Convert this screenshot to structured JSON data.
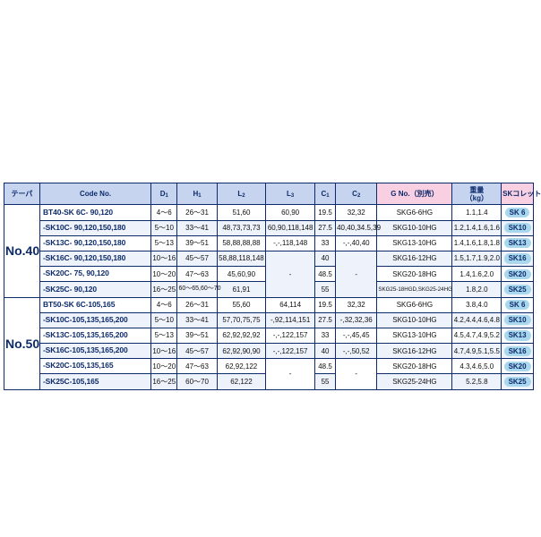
{
  "colors": {
    "border": "#0d2b6b",
    "header_bg": "#c7d4ef",
    "header_pink_bg": "#f9cfe2",
    "stripe_bg": "#eef2fa",
    "chip_bg": "#a9d8ee",
    "text_body": "#111111"
  },
  "headers": {
    "taper": "テーパ",
    "code": "Code No.",
    "d1": "D",
    "d1_sub": "1",
    "h1": "H",
    "h1_sub": "1",
    "l2": "L",
    "l2_sub": "2",
    "l3": "L",
    "l3_sub": "3",
    "c1": "C",
    "c1_sub": "1",
    "c2": "C",
    "c2_sub": "2",
    "g": "G No.（別売）",
    "weight_a": "重量",
    "weight_b": "（kg）",
    "sk": "SKコレット"
  },
  "group40": {
    "taper_label": "No.40",
    "r1": {
      "code": "BT40-SK  6C-  90,120",
      "d1": "4～6",
      "h1": "26～31",
      "l2": "51,60",
      "l3": "60,90",
      "c1": "19.5",
      "c2": "32,32",
      "g": "SKG6-6HG",
      "wt": "1.1,1.4",
      "sk": "SK 6"
    },
    "r2": {
      "code": "-SK10C-  90,120,150,180",
      "d1": "5～10",
      "h1": "33～41",
      "l2": "48,73,73,73",
      "l3": "60,90,118,148",
      "c1": "27.5",
      "c2": "40,40,34.5,39",
      "g": "SKG10-10HG",
      "wt": "1.2,1.4,1.6,1.6",
      "sk": "SK10"
    },
    "r3": {
      "code": "-SK13C-  90,120,150,180",
      "d1": "5～13",
      "h1": "39～51",
      "l2": "58,88,88,88",
      "l3": "-,-,118,148",
      "c1": "33",
      "c2": "-,-,40,40",
      "g": "SKG13-10HG",
      "wt": "1.4,1.6,1.8,1.8",
      "sk": "SK13"
    },
    "r4": {
      "code": "-SK16C-  90,120,150,180",
      "d1": "10～16",
      "h1": "45～57",
      "l2": "58,88,118,148",
      "l3_span": true,
      "c1": "40",
      "c2_span": true,
      "g": "SKG16-12HG",
      "wt": "1.5,1.7,1.9,2.0",
      "sk": "SK16"
    },
    "r5": {
      "code": "-SK20C-  75,  90,120",
      "d1": "10～20",
      "h1": "47～63",
      "l2": "45,60,90",
      "c1": "48.5",
      "g": "SKG20-18HG",
      "wt": "1.4,1.6,2.0",
      "sk": "SK20"
    },
    "r6": {
      "code": "-SK25C-  90,120",
      "d1": "16～25",
      "h1": "60～65,60～70",
      "l2": "61,91",
      "c1": "55",
      "g": "SKG25-18HGD,SKG25-24HG",
      "wt": "1.8,2.0",
      "sk": "SK25"
    }
  },
  "group50": {
    "taper_label": "No.50",
    "r1": {
      "code": "BT50-SK  6C-105,165",
      "d1": "4～6",
      "h1": "26～31",
      "l2": "55,60",
      "l3": "64,114",
      "c1": "19.5",
      "c2": "32,32",
      "g": "SKG6-6HG",
      "wt": "3.8,4.0",
      "sk": "SK 6"
    },
    "r2": {
      "code": "-SK10C-105,135,165,200",
      "d1": "5～10",
      "h1": "33～41",
      "l2": "57,70,75,75",
      "l3": "-,92,114,151",
      "c1": "27.5",
      "c2": "-,32,32,36",
      "g": "SKG10-10HG",
      "wt": "4.2,4.4,4.6,4.8",
      "sk": "SK10"
    },
    "r3": {
      "code": "-SK13C-105,135,165,200",
      "d1": "5～13",
      "h1": "39～51",
      "l2": "62,92,92,92",
      "l3": "-,-,122,157",
      "c1": "33",
      "c2": "-,-,45,45",
      "g": "SKG13-10HG",
      "wt": "4.5,4.7,4.9,5.2",
      "sk": "SK13"
    },
    "r4": {
      "code": "-SK16C-105,135,165,200",
      "d1": "10～16",
      "h1": "45～57",
      "l2": "62,92,90,90",
      "l3": "-,-,122,157",
      "c1": "40",
      "c2": "-,-,50,52",
      "g": "SKG16-12HG",
      "wt": "4.7,4.9,5.1,5.5",
      "sk": "SK16"
    },
    "r5": {
      "code": "-SK20C-105,135,165",
      "d1": "10～20",
      "h1": "47～63",
      "l2": "62,92,122",
      "l3_span": true,
      "c1": "48.5",
      "c2_span": true,
      "g": "SKG20-18HG",
      "wt": "4.3,4.6,5.0",
      "sk": "SK20"
    },
    "r6": {
      "code": "-SK25C-105,165",
      "d1": "16～25",
      "h1": "60～70",
      "l2": "62,122",
      "c1": "55",
      "g": "SKG25-24HG",
      "wt": "5.2,5.8",
      "sk": "SK25"
    }
  },
  "l3_dash": "-",
  "c2_dash": "-"
}
